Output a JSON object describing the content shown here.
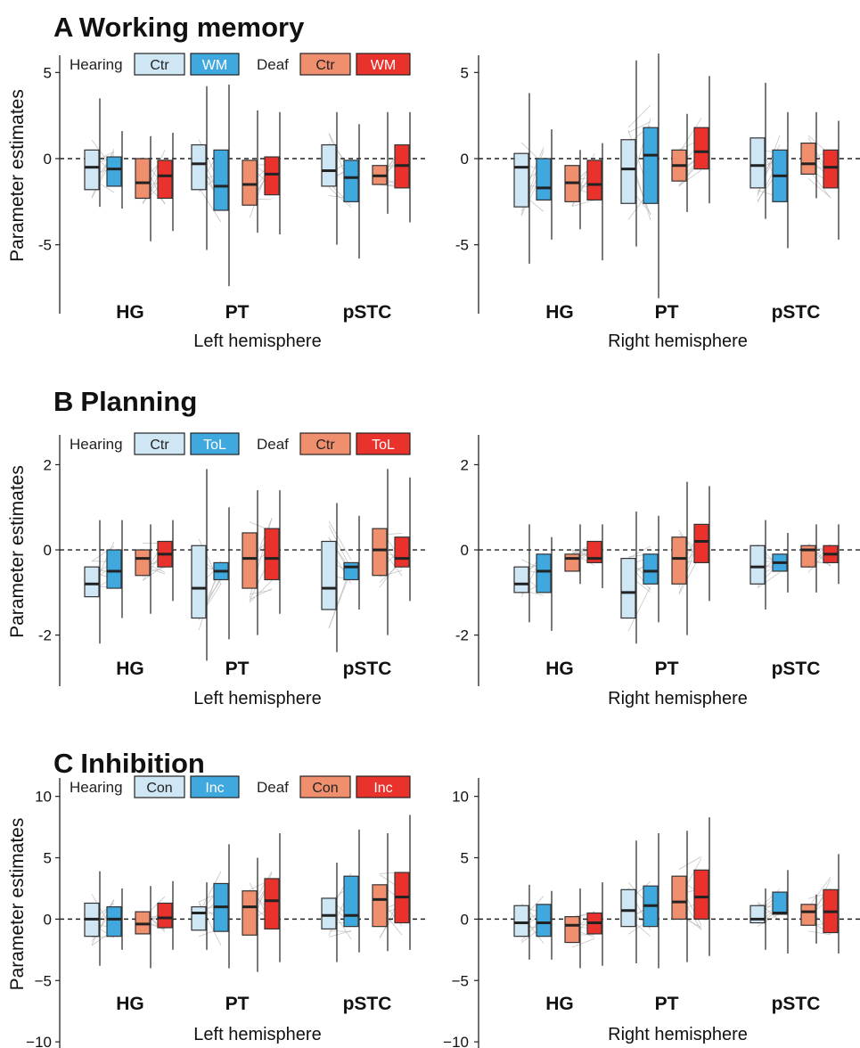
{
  "chart_data": [
    {
      "type": "box",
      "panel_letter": "A",
      "title": "Working memory",
      "ylabel": "Parameter estimates",
      "ylim": [
        -9,
        6
      ],
      "yticks": [
        5,
        0,
        -5
      ],
      "ytick_labels": [
        "5",
        "0",
        "-5"
      ],
      "legend": {
        "group1": "Hearing",
        "group2": "Deaf",
        "cond1": "Ctr",
        "cond2": "WM"
      },
      "hemispheres": [
        {
          "xlabel": "Left hemisphere",
          "regions": [
            {
              "name": "HG",
              "boxes": [
                {
                  "min": -2.8,
                  "q1": -1.8,
                  "median": -0.5,
                  "q3": 0.5,
                  "max": 3.5
                },
                {
                  "min": -2.9,
                  "q1": -1.6,
                  "median": -0.6,
                  "q3": 0.1,
                  "max": 1.6
                },
                {
                  "min": -4.8,
                  "q1": -2.3,
                  "median": -1.4,
                  "q3": 0.0,
                  "max": 1.3
                },
                {
                  "min": -4.2,
                  "q1": -2.3,
                  "median": -1.0,
                  "q3": -0.1,
                  "max": 1.5
                }
              ]
            },
            {
              "name": "PT",
              "boxes": [
                {
                  "min": -5.3,
                  "q1": -1.8,
                  "median": -0.3,
                  "q3": 0.8,
                  "max": 4.2
                },
                {
                  "min": -7.4,
                  "q1": -3.0,
                  "median": -1.6,
                  "q3": 0.5,
                  "max": 4.3
                },
                {
                  "min": -4.3,
                  "q1": -2.7,
                  "median": -1.5,
                  "q3": -0.1,
                  "max": 2.8
                },
                {
                  "min": -4.4,
                  "q1": -2.1,
                  "median": -0.9,
                  "q3": 0.1,
                  "max": 2.7
                }
              ]
            },
            {
              "name": "pSTC",
              "boxes": [
                {
                  "min": -5.0,
                  "q1": -1.6,
                  "median": -0.7,
                  "q3": 0.8,
                  "max": 2.7
                },
                {
                  "min": -5.8,
                  "q1": -2.5,
                  "median": -1.1,
                  "q3": -0.1,
                  "max": 2.0
                },
                {
                  "min": -3.2,
                  "q1": -1.5,
                  "median": -1.0,
                  "q3": -0.4,
                  "max": 2.7
                },
                {
                  "min": -3.7,
                  "q1": -1.7,
                  "median": -0.4,
                  "q3": 0.8,
                  "max": 2.7
                }
              ]
            }
          ]
        },
        {
          "xlabel": "Right hemisphere",
          "regions": [
            {
              "name": "HG",
              "boxes": [
                {
                  "min": -6.1,
                  "q1": -2.8,
                  "median": -0.5,
                  "q3": 0.3,
                  "max": 3.8
                },
                {
                  "min": -4.7,
                  "q1": -2.4,
                  "median": -1.7,
                  "q3": 0.0,
                  "max": 1.7
                },
                {
                  "min": -4.1,
                  "q1": -2.5,
                  "median": -1.4,
                  "q3": -0.4,
                  "max": 0.5
                },
                {
                  "min": -5.9,
                  "q1": -2.4,
                  "median": -1.5,
                  "q3": -0.1,
                  "max": 0.9
                }
              ]
            },
            {
              "name": "PT",
              "boxes": [
                {
                  "min": -5.1,
                  "q1": -2.6,
                  "median": -0.6,
                  "q3": 1.1,
                  "max": 5.7
                },
                {
                  "min": -8.1,
                  "q1": -2.6,
                  "median": 0.2,
                  "q3": 1.8,
                  "max": 6.1
                },
                {
                  "min": -3.1,
                  "q1": -1.3,
                  "median": -0.4,
                  "q3": 0.5,
                  "max": 2.6
                },
                {
                  "min": -2.6,
                  "q1": -0.6,
                  "median": 0.4,
                  "q3": 1.8,
                  "max": 4.8
                }
              ]
            },
            {
              "name": "pSTC",
              "boxes": [
                {
                  "min": -3.5,
                  "q1": -1.7,
                  "median": -0.4,
                  "q3": 1.2,
                  "max": 4.4
                },
                {
                  "min": -5.2,
                  "q1": -2.5,
                  "median": -1.0,
                  "q3": 0.5,
                  "max": 2.7
                },
                {
                  "min": -2.3,
                  "q1": -0.9,
                  "median": -0.3,
                  "q3": 0.9,
                  "max": 2.7
                },
                {
                  "min": -4.7,
                  "q1": -1.7,
                  "median": -0.5,
                  "q3": 0.5,
                  "max": 2.2
                }
              ]
            }
          ]
        }
      ]
    },
    {
      "type": "box",
      "panel_letter": "B",
      "title": "Planning",
      "ylabel": "Parameter estimates",
      "ylim": [
        -3.2,
        2.7
      ],
      "yticks": [
        2,
        0,
        -2
      ],
      "ytick_labels": [
        "2",
        "0",
        "-2"
      ],
      "legend": {
        "group1": "Hearing",
        "group2": "Deaf",
        "cond1": "Ctr",
        "cond2": "ToL"
      },
      "hemispheres": [
        {
          "xlabel": "Left hemisphere",
          "regions": [
            {
              "name": "HG",
              "boxes": [
                {
                  "min": -2.2,
                  "q1": -1.1,
                  "median": -0.8,
                  "q3": -0.4,
                  "max": 0.7
                },
                {
                  "min": -1.6,
                  "q1": -0.9,
                  "median": -0.5,
                  "q3": 0.0,
                  "max": 0.7
                },
                {
                  "min": -1.5,
                  "q1": -0.6,
                  "median": -0.2,
                  "q3": 0.0,
                  "max": 0.6
                },
                {
                  "min": -1.2,
                  "q1": -0.4,
                  "median": -0.1,
                  "q3": 0.2,
                  "max": 0.7
                }
              ]
            },
            {
              "name": "PT",
              "boxes": [
                {
                  "min": -2.6,
                  "q1": -1.6,
                  "median": -0.9,
                  "q3": 0.1,
                  "max": 1.9
                },
                {
                  "min": -2.1,
                  "q1": -0.7,
                  "median": -0.5,
                  "q3": -0.3,
                  "max": 1.0
                },
                {
                  "min": -2.0,
                  "q1": -0.9,
                  "median": -0.2,
                  "q3": 0.4,
                  "max": 1.4
                },
                {
                  "min": -1.5,
                  "q1": -0.7,
                  "median": -0.2,
                  "q3": 0.5,
                  "max": 1.4
                }
              ]
            },
            {
              "name": "pSTC",
              "boxes": [
                {
                  "min": -2.4,
                  "q1": -1.4,
                  "median": -0.9,
                  "q3": 0.2,
                  "max": 1.1
                },
                {
                  "min": -1.4,
                  "q1": -0.7,
                  "median": -0.4,
                  "q3": -0.3,
                  "max": 0.8
                },
                {
                  "min": -2.0,
                  "q1": -0.6,
                  "median": 0.0,
                  "q3": 0.5,
                  "max": 1.9
                },
                {
                  "min": -1.2,
                  "q1": -0.4,
                  "median": -0.2,
                  "q3": 0.3,
                  "max": 1.7
                }
              ]
            }
          ]
        },
        {
          "xlabel": "Right hemisphere",
          "regions": [
            {
              "name": "HG",
              "boxes": [
                {
                  "min": -1.7,
                  "q1": -1.0,
                  "median": -0.8,
                  "q3": -0.4,
                  "max": 0.6
                },
                {
                  "min": -1.9,
                  "q1": -1.0,
                  "median": -0.5,
                  "q3": -0.1,
                  "max": 0.3
                },
                {
                  "min": -0.8,
                  "q1": -0.5,
                  "median": -0.2,
                  "q3": -0.1,
                  "max": 0.6
                },
                {
                  "min": -0.9,
                  "q1": -0.3,
                  "median": -0.2,
                  "q3": 0.2,
                  "max": 0.6
                }
              ]
            },
            {
              "name": "PT",
              "boxes": [
                {
                  "min": -2.2,
                  "q1": -1.6,
                  "median": -1.0,
                  "q3": -0.2,
                  "max": 0.9
                },
                {
                  "min": -1.7,
                  "q1": -0.8,
                  "median": -0.5,
                  "q3": -0.1,
                  "max": 0.8
                },
                {
                  "min": -2.0,
                  "q1": -0.8,
                  "median": -0.2,
                  "q3": 0.3,
                  "max": 1.6
                },
                {
                  "min": -1.2,
                  "q1": -0.3,
                  "median": 0.2,
                  "q3": 0.6,
                  "max": 1.5
                }
              ]
            },
            {
              "name": "pSTC",
              "boxes": [
                {
                  "min": -1.4,
                  "q1": -0.8,
                  "median": -0.4,
                  "q3": 0.1,
                  "max": 0.7
                },
                {
                  "min": -1.0,
                  "q1": -0.5,
                  "median": -0.3,
                  "q3": -0.1,
                  "max": 0.4
                },
                {
                  "min": -1.0,
                  "q1": -0.4,
                  "median": 0.0,
                  "q3": 0.1,
                  "max": 0.6
                },
                {
                  "min": -0.8,
                  "q1": -0.3,
                  "median": -0.1,
                  "q3": 0.1,
                  "max": 0.6
                }
              ]
            }
          ]
        }
      ]
    },
    {
      "type": "box",
      "panel_letter": "C",
      "title": "Inhibition",
      "ylabel": "Parameter estimates",
      "ylim": [
        -10.5,
        11.5
      ],
      "yticks": [
        10,
        5,
        0,
        -5,
        -10
      ],
      "ytick_labels": [
        "10",
        "5",
        "0",
        "−5",
        "−10"
      ],
      "legend": {
        "group1": "Hearing",
        "group2": "Deaf",
        "cond1": "Con",
        "cond2": "Inc"
      },
      "hemispheres": [
        {
          "xlabel": "Left hemisphere",
          "regions": [
            {
              "name": "HG",
              "boxes": [
                {
                  "min": -3.8,
                  "q1": -1.4,
                  "median": 0.0,
                  "q3": 1.3,
                  "max": 3.9
                },
                {
                  "min": -2.5,
                  "q1": -1.4,
                  "median": 0.0,
                  "q3": 1.0,
                  "max": 2.5
                },
                {
                  "min": -4.0,
                  "q1": -1.2,
                  "median": -0.4,
                  "q3": 0.6,
                  "max": 2.7
                },
                {
                  "min": -2.5,
                  "q1": -0.7,
                  "median": 0.1,
                  "q3": 1.3,
                  "max": 3.1
                }
              ]
            },
            {
              "name": "PT",
              "boxes": [
                {
                  "min": -2.5,
                  "q1": -0.9,
                  "median": 0.5,
                  "q3": 1.0,
                  "max": 3.0
                },
                {
                  "min": -4.0,
                  "q1": -1.0,
                  "median": 1.0,
                  "q3": 2.9,
                  "max": 6.1
                },
                {
                  "min": -4.3,
                  "q1": -1.3,
                  "median": 1.0,
                  "q3": 2.3,
                  "max": 5.0
                },
                {
                  "min": -3.5,
                  "q1": -0.8,
                  "median": 1.5,
                  "q3": 3.3,
                  "max": 7.0
                }
              ]
            },
            {
              "name": "pSTC",
              "boxes": [
                {
                  "min": -3.5,
                  "q1": -0.8,
                  "median": 0.3,
                  "q3": 1.7,
                  "max": 4.6
                },
                {
                  "min": -2.7,
                  "q1": -0.6,
                  "median": 0.3,
                  "q3": 3.5,
                  "max": 7.3
                },
                {
                  "min": -2.6,
                  "q1": -0.6,
                  "median": 1.6,
                  "q3": 2.8,
                  "max": 7.0
                },
                {
                  "min": -2.5,
                  "q1": -0.3,
                  "median": 1.8,
                  "q3": 3.8,
                  "max": 8.5
                }
              ]
            }
          ]
        },
        {
          "xlabel": "Right hemisphere",
          "regions": [
            {
              "name": "HG",
              "boxes": [
                {
                  "min": -3.3,
                  "q1": -1.4,
                  "median": -0.3,
                  "q3": 1.1,
                  "max": 2.8
                },
                {
                  "min": -3.3,
                  "q1": -1.4,
                  "median": -0.3,
                  "q3": 1.2,
                  "max": 2.3
                },
                {
                  "min": -4.0,
                  "q1": -1.9,
                  "median": -0.5,
                  "q3": 0.2,
                  "max": 2.5
                },
                {
                  "min": -3.8,
                  "q1": -1.2,
                  "median": -0.3,
                  "q3": 0.5,
                  "max": 3.0
                }
              ]
            },
            {
              "name": "PT",
              "boxes": [
                {
                  "min": -3.6,
                  "q1": -0.6,
                  "median": 0.7,
                  "q3": 2.4,
                  "max": 6.4
                },
                {
                  "min": -4.0,
                  "q1": -0.6,
                  "median": 1.1,
                  "q3": 2.7,
                  "max": 7.0
                },
                {
                  "min": -3.5,
                  "q1": 0.0,
                  "median": 1.4,
                  "q3": 3.5,
                  "max": 7.2
                },
                {
                  "min": -3.0,
                  "q1": 0.0,
                  "median": 1.8,
                  "q3": 4.0,
                  "max": 8.3
                }
              ]
            },
            {
              "name": "pSTC",
              "boxes": [
                {
                  "min": -2.5,
                  "q1": -0.3,
                  "median": 0.0,
                  "q3": 1.1,
                  "max": 2.5
                },
                {
                  "min": -2.8,
                  "q1": 0.4,
                  "median": 0.5,
                  "q3": 2.2,
                  "max": 4.0
                },
                {
                  "min": -2.0,
                  "q1": -0.5,
                  "median": 0.6,
                  "q3": 1.2,
                  "max": 2.0
                },
                {
                  "min": -2.8,
                  "q1": -1.1,
                  "median": 0.6,
                  "q3": 2.4,
                  "max": 5.3
                }
              ]
            }
          ]
        }
      ]
    }
  ],
  "colors": {
    "hearing_ctr": "#cfe6f5",
    "hearing_task": "#3ea8df",
    "deaf_ctr": "#f08f6e",
    "deaf_task": "#e8322b",
    "subject_lines": "#b8b8b8",
    "zero_line": "#222222"
  }
}
